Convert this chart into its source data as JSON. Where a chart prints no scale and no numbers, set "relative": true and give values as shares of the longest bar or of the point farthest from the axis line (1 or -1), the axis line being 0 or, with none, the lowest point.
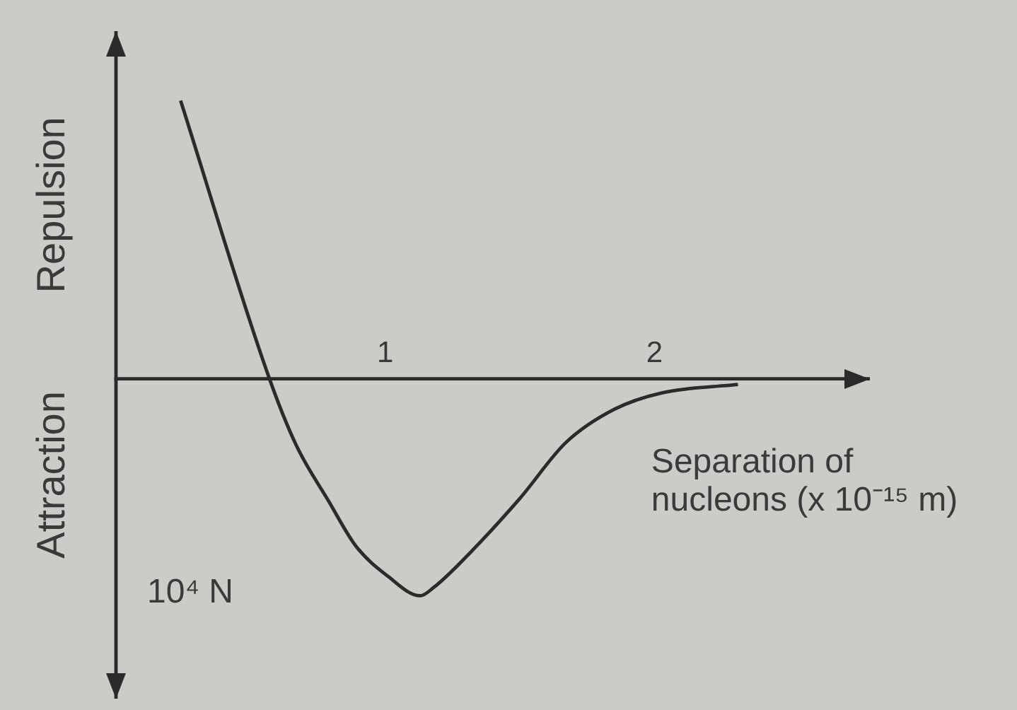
{
  "chart_data": {
    "type": "line",
    "relative": true,
    "xlabel": "Separation of nucleons (x 10⁻¹⁵ m)",
    "ylabel": "10⁴ N",
    "annotations": [
      "Repulsion",
      "Attraction"
    ],
    "x": [
      0.24,
      0.57,
      0.67,
      0.79,
      0.89,
      1.01,
      1.13,
      1.18,
      1.27,
      1.5,
      1.67,
      1.85,
      2.03,
      2.31
    ],
    "series": [
      {
        "color": "#2b2b2b",
        "values": [
          1,
          0,
          -0.24,
          -0.44,
          -0.6,
          -0.71,
          -0.78,
          -0.75,
          -0.67,
          -0.43,
          -0.23,
          -0.11,
          -0.05,
          -0.02
        ]
      }
    ],
    "xlim": [
      0,
      2.8
    ],
    "xticks": [
      1,
      2
    ]
  }
}
